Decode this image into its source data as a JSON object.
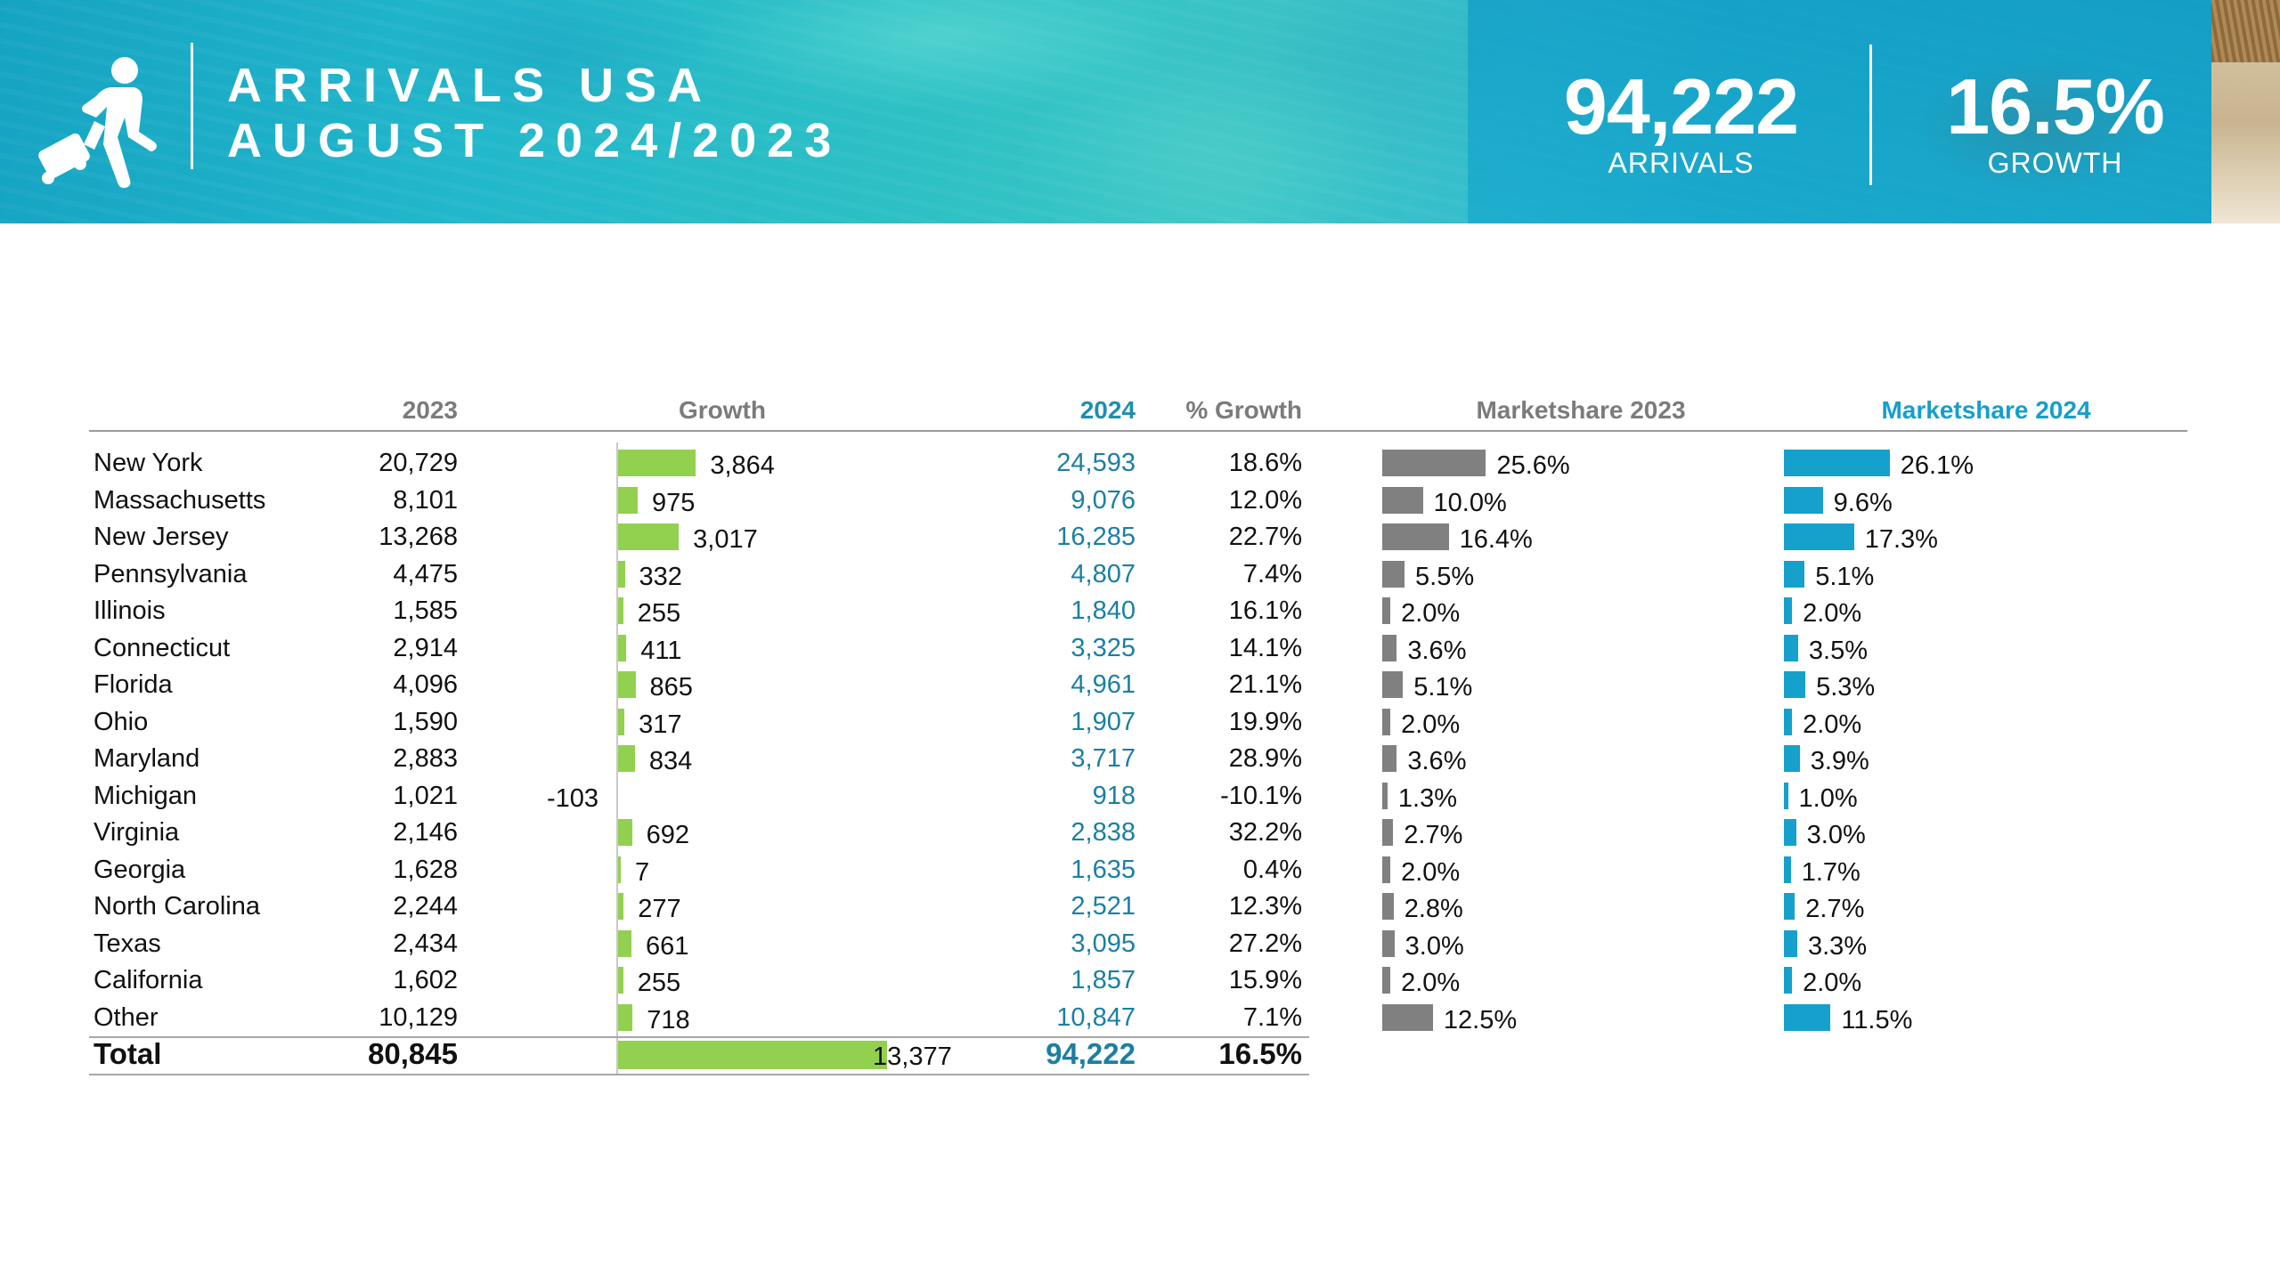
{
  "header": {
    "title_line1": "ARRIVALS USA",
    "title_line2": "AUGUST 2024/2023",
    "kpi_arrivals_value": "94,222",
    "kpi_arrivals_label": "ARRIVALS",
    "kpi_growth_value": "16.5%",
    "kpi_growth_label": "GROWTH",
    "icon": "traveler-with-suitcase-icon"
  },
  "colors": {
    "growth_bar": "#92d050",
    "share_2023_bar": "#808080",
    "share_2024_bar": "#16a0cc",
    "value_2024_text": "#1b7fa3"
  },
  "chart_data": {
    "type": "table",
    "columns": [
      "",
      "2023",
      "Growth",
      "2024",
      "% Growth",
      "Marketshare 2023",
      "Marketshare 2024"
    ],
    "rows": [
      {
        "state": "New York",
        "y2023": "20,729",
        "growth": "3,864",
        "growth_value": 3864,
        "y2024": "24,593",
        "pct_growth": "18.6%",
        "share2023": "25.6%",
        "share2023_value": 25.6,
        "share2024": "26.1%",
        "share2024_value": 26.1
      },
      {
        "state": "Massachusetts",
        "y2023": "8,101",
        "growth": "975",
        "growth_value": 975,
        "y2024": "9,076",
        "pct_growth": "12.0%",
        "share2023": "10.0%",
        "share2023_value": 10.0,
        "share2024": "9.6%",
        "share2024_value": 9.6
      },
      {
        "state": "New Jersey",
        "y2023": "13,268",
        "growth": "3,017",
        "growth_value": 3017,
        "y2024": "16,285",
        "pct_growth": "22.7%",
        "share2023": "16.4%",
        "share2023_value": 16.4,
        "share2024": "17.3%",
        "share2024_value": 17.3
      },
      {
        "state": "Pennsylvania",
        "y2023": "4,475",
        "growth": "332",
        "growth_value": 332,
        "y2024": "4,807",
        "pct_growth": "7.4%",
        "share2023": "5.5%",
        "share2023_value": 5.5,
        "share2024": "5.1%",
        "share2024_value": 5.1
      },
      {
        "state": "Illinois",
        "y2023": "1,585",
        "growth": "255",
        "growth_value": 255,
        "y2024": "1,840",
        "pct_growth": "16.1%",
        "share2023": "2.0%",
        "share2023_value": 2.0,
        "share2024": "2.0%",
        "share2024_value": 2.0
      },
      {
        "state": "Connecticut",
        "y2023": "2,914",
        "growth": "411",
        "growth_value": 411,
        "y2024": "3,325",
        "pct_growth": "14.1%",
        "share2023": "3.6%",
        "share2023_value": 3.6,
        "share2024": "3.5%",
        "share2024_value": 3.5
      },
      {
        "state": "Florida",
        "y2023": "4,096",
        "growth": "865",
        "growth_value": 865,
        "y2024": "4,961",
        "pct_growth": "21.1%",
        "share2023": "5.1%",
        "share2023_value": 5.1,
        "share2024": "5.3%",
        "share2024_value": 5.3
      },
      {
        "state": "Ohio",
        "y2023": "1,590",
        "growth": "317",
        "growth_value": 317,
        "y2024": "1,907",
        "pct_growth": "19.9%",
        "share2023": "2.0%",
        "share2023_value": 2.0,
        "share2024": "2.0%",
        "share2024_value": 2.0
      },
      {
        "state": "Maryland",
        "y2023": "2,883",
        "growth": "834",
        "growth_value": 834,
        "y2024": "3,717",
        "pct_growth": "28.9%",
        "share2023": "3.6%",
        "share2023_value": 3.6,
        "share2024": "3.9%",
        "share2024_value": 3.9
      },
      {
        "state": "Michigan",
        "y2023": "1,021",
        "growth": "-103",
        "growth_value": -103,
        "y2024": "918",
        "pct_growth": "-10.1%",
        "share2023": "1.3%",
        "share2023_value": 1.3,
        "share2024": "1.0%",
        "share2024_value": 1.0
      },
      {
        "state": "Virginia",
        "y2023": "2,146",
        "growth": "692",
        "growth_value": 692,
        "y2024": "2,838",
        "pct_growth": "32.2%",
        "share2023": "2.7%",
        "share2023_value": 2.7,
        "share2024": "3.0%",
        "share2024_value": 3.0
      },
      {
        "state": "Georgia",
        "y2023": "1,628",
        "growth": "7",
        "growth_value": 7,
        "y2024": "1,635",
        "pct_growth": "0.4%",
        "share2023": "2.0%",
        "share2023_value": 2.0,
        "share2024": "1.7%",
        "share2024_value": 1.7
      },
      {
        "state": "North Carolina",
        "y2023": "2,244",
        "growth": "277",
        "growth_value": 277,
        "y2024": "2,521",
        "pct_growth": "12.3%",
        "share2023": "2.8%",
        "share2023_value": 2.8,
        "share2024": "2.7%",
        "share2024_value": 2.7
      },
      {
        "state": "Texas",
        "y2023": "2,434",
        "growth": "661",
        "growth_value": 661,
        "y2024": "3,095",
        "pct_growth": "27.2%",
        "share2023": "3.0%",
        "share2023_value": 3.0,
        "share2024": "3.3%",
        "share2024_value": 3.3
      },
      {
        "state": "California",
        "y2023": "1,602",
        "growth": "255",
        "growth_value": 255,
        "y2024": "1,857",
        "pct_growth": "15.9%",
        "share2023": "2.0%",
        "share2023_value": 2.0,
        "share2024": "2.0%",
        "share2024_value": 2.0
      },
      {
        "state": "Other",
        "y2023": "10,129",
        "growth": "718",
        "growth_value": 718,
        "y2024": "10,847",
        "pct_growth": "7.1%",
        "share2023": "12.5%",
        "share2023_value": 12.5,
        "share2024": "11.5%",
        "share2024_value": 11.5
      }
    ],
    "total": {
      "state": "Total",
      "y2023": "80,845",
      "growth": "13,377",
      "growth_value": 13377,
      "y2024": "94,222",
      "pct_growth": "16.5%"
    }
  }
}
